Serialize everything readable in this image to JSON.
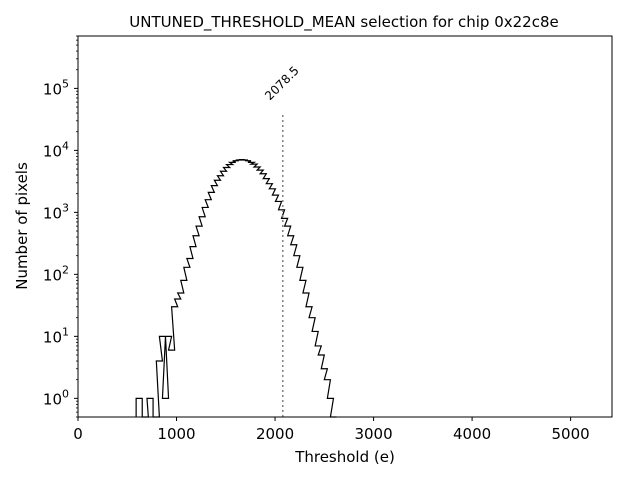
{
  "chart_data": {
    "type": "histogram",
    "title": "UNTUNED_THRESHOLD_MEAN selection for chip 0x22c8e",
    "xlabel": "Threshold (e)",
    "ylabel": "Number of pixels",
    "xlim": [
      0,
      5420
    ],
    "ylim": [
      0.5,
      700000
    ],
    "yscale": "log",
    "grid": false,
    "line_color": "#000000",
    "x_ticks": [
      0,
      1000,
      2000,
      3000,
      4000,
      5000
    ],
    "x_tick_labels": [
      "0",
      "1000",
      "2000",
      "3000",
      "4000",
      "5000"
    ],
    "y_ticks": [
      1,
      10,
      100,
      1000,
      10000,
      100000
    ],
    "y_tick_labels": [
      "10^0",
      "10^1",
      "10^2",
      "10^3",
      "10^4",
      "10^5"
    ],
    "annotation": {
      "x": 2078.5,
      "label": "2078.5",
      "line_top_y": 40000,
      "color": "#808080"
    },
    "bin_width": 62,
    "bins": [
      [
        590,
        1
      ],
      [
        652,
        0
      ],
      [
        700,
        1
      ],
      [
        762,
        0
      ],
      [
        762,
        0
      ],
      [
        762,
        0
      ],
      [
        764,
        0
      ],
      [
        795,
        4
      ],
      [
        826,
        10
      ],
      [
        857,
        1
      ],
      [
        888,
        10
      ],
      [
        919,
        6
      ],
      [
        950,
        30
      ],
      [
        981,
        40
      ],
      [
        1012,
        50
      ],
      [
        1043,
        80
      ],
      [
        1074,
        130
      ],
      [
        1105,
        180
      ],
      [
        1136,
        280
      ],
      [
        1167,
        420
      ],
      [
        1198,
        600
      ],
      [
        1229,
        850
      ],
      [
        1260,
        1200
      ],
      [
        1291,
        1600
      ],
      [
        1322,
        2100
      ],
      [
        1353,
        2700
      ],
      [
        1384,
        3300
      ],
      [
        1415,
        3900
      ],
      [
        1446,
        4600
      ],
      [
        1477,
        5300
      ],
      [
        1508,
        5900
      ],
      [
        1539,
        6400
      ],
      [
        1570,
        6800
      ],
      [
        1601,
        7000
      ],
      [
        1632,
        7100
      ],
      [
        1663,
        7000
      ],
      [
        1694,
        6800
      ],
      [
        1725,
        6400
      ],
      [
        1756,
        6000
      ],
      [
        1787,
        5400
      ],
      [
        1818,
        4800
      ],
      [
        1849,
        4200
      ],
      [
        1880,
        3500
      ],
      [
        1911,
        2900
      ],
      [
        1942,
        2400
      ],
      [
        1973,
        1900
      ],
      [
        2004,
        1500
      ],
      [
        2035,
        1100
      ],
      [
        2066,
        800
      ],
      [
        2097,
        600
      ],
      [
        2128,
        420
      ],
      [
        2159,
        300
      ],
      [
        2190,
        200
      ],
      [
        2221,
        130
      ],
      [
        2252,
        80
      ],
      [
        2283,
        50
      ],
      [
        2314,
        30
      ],
      [
        2345,
        20
      ],
      [
        2376,
        12
      ],
      [
        2407,
        7
      ],
      [
        2438,
        5
      ],
      [
        2469,
        3
      ],
      [
        2500,
        2
      ],
      [
        2531,
        1
      ],
      [
        2562,
        0
      ]
    ]
  }
}
